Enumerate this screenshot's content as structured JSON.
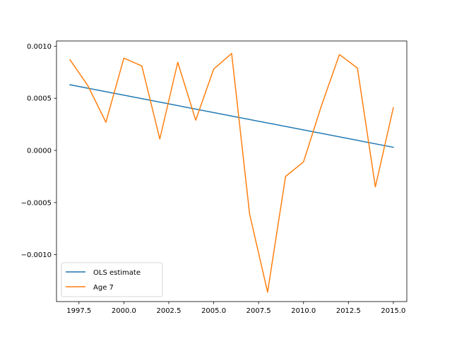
{
  "chart_data": {
    "type": "line",
    "title": "",
    "xlabel": "",
    "ylabel": "",
    "xlim": [
      1996.25,
      2015.75
    ],
    "ylim": [
      -0.00145,
      0.00105
    ],
    "x_ticks": [
      1997.5,
      2000.0,
      2002.5,
      2005.0,
      2007.5,
      2010.0,
      2012.5,
      2015.0
    ],
    "x_tick_labels": [
      "1997.5",
      "2000.0",
      "2002.5",
      "2005.0",
      "2007.5",
      "2010.0",
      "2012.5",
      "2015.0"
    ],
    "y_ticks": [
      0.001,
      0.0005,
      0.0,
      -0.0005,
      -0.001
    ],
    "y_tick_labels": [
      "0.0010",
      "0.0005",
      "0.0000",
      "−0.0005",
      "−0.0010"
    ],
    "grid": false,
    "legend_position": "lower-left",
    "series": [
      {
        "name": "OLS estimate",
        "color": "#1f77b4",
        "x": [
          1997,
          2015
        ],
        "y": [
          0.00063,
          3e-05
        ]
      },
      {
        "name": "Age 7",
        "color": "#ff7f0e",
        "x": [
          1997,
          1998,
          1999,
          2000,
          2001,
          2002,
          2003,
          2004,
          2005,
          2006,
          2007,
          2008,
          2009,
          2010,
          2011,
          2012,
          2013,
          2014,
          2015
        ],
        "y": [
          0.00087,
          0.00062,
          0.00027,
          0.000885,
          0.00081,
          0.00011,
          0.000845,
          0.00029,
          0.00078,
          0.00093,
          -0.00061,
          -0.00136,
          -0.00025,
          -0.00011,
          0.00043,
          0.00092,
          0.00079,
          -0.00035,
          0.00041
        ]
      }
    ]
  }
}
